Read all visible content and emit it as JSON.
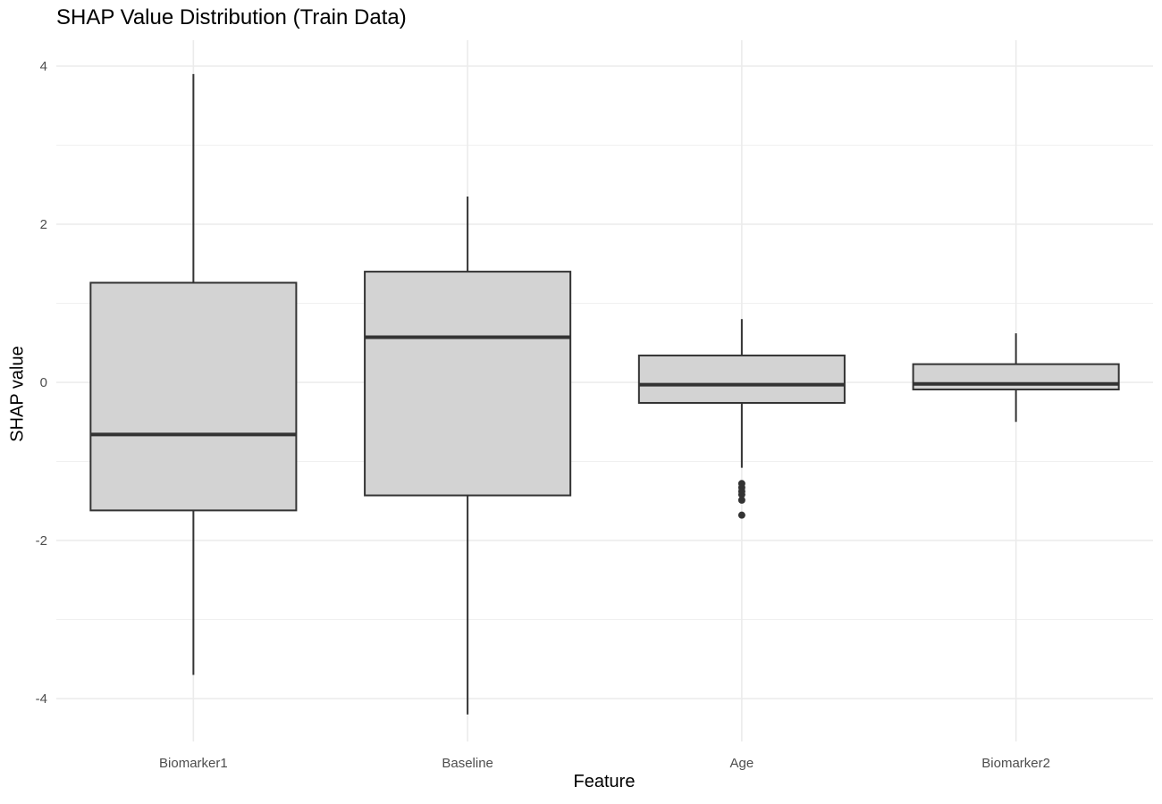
{
  "chart_data": {
    "type": "boxplot",
    "title": "SHAP Value Distribution (Train Data)",
    "xlabel": "Feature",
    "ylabel": "SHAP value",
    "ylim": [
      -4.45,
      4.4
    ],
    "yticks": [
      -4,
      -2,
      0,
      2,
      4
    ],
    "ytick_labels": [
      "-4",
      "-2",
      "0",
      "2",
      "4"
    ],
    "grid": true,
    "box_fill": "#d3d3d3",
    "box_stroke": "#333333",
    "grid_color": "#ebebeb",
    "categories": [
      "Biomarker1",
      "Baseline",
      "Age",
      "Biomarker2"
    ],
    "boxes": [
      {
        "category": "Biomarker1",
        "whisker_low": -3.7,
        "q1": -1.62,
        "median": -0.66,
        "q3": 1.26,
        "whisker_high": 3.9,
        "outliers": []
      },
      {
        "category": "Baseline",
        "whisker_low": -4.2,
        "q1": -1.43,
        "median": 0.57,
        "q3": 1.4,
        "whisker_high": 2.35,
        "outliers": []
      },
      {
        "category": "Age",
        "whisker_low": -1.08,
        "q1": -0.26,
        "median": -0.03,
        "q3": 0.34,
        "whisker_high": 0.8,
        "outliers": [
          -1.28,
          -1.33,
          -1.38,
          -1.42,
          -1.49,
          -1.68
        ]
      },
      {
        "category": "Biomarker2",
        "whisker_low": -0.5,
        "q1": -0.09,
        "median": -0.02,
        "q3": 0.23,
        "whisker_high": 0.62,
        "outliers": []
      }
    ]
  }
}
